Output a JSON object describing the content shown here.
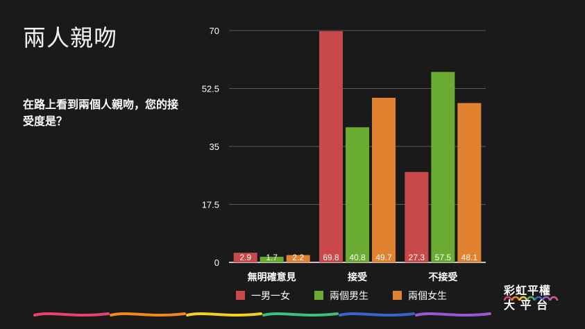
{
  "slide": {
    "title": "兩人親吻",
    "question": "在路上看到兩個人親吻，您的接受度是？"
  },
  "brand": {
    "name": "彩虹平權\n大 平 台",
    "logo_icon": "rainbow-arcs-icon",
    "rainbow_colors": [
      "#e8426f",
      "#f08a1c",
      "#f5d11a",
      "#3fbf7a",
      "#3b63c9",
      "#9b59d0",
      "#e84fa8"
    ]
  },
  "chart_data": {
    "type": "bar",
    "title": "",
    "xlabel": "",
    "ylabel": "",
    "categories": [
      "無明確意見",
      "接受",
      "不接受"
    ],
    "series": [
      {
        "name": "一男一女",
        "color": "#c9484a",
        "values": [
          2.9,
          69.8,
          27.3
        ]
      },
      {
        "name": "兩個男生",
        "color": "#6aab32",
        "values": [
          1.7,
          40.8,
          57.5
        ]
      },
      {
        "name": "兩個女生",
        "color": "#e0822f",
        "values": [
          2.2,
          49.7,
          48.1
        ]
      }
    ],
    "ylim": [
      0,
      70
    ],
    "yticks": [
      "0",
      "17.5",
      "35",
      "52.5",
      "70"
    ],
    "grid": true,
    "legend_position": "bottom",
    "data_labels": true,
    "axis_color": "#ffffff",
    "grid_color": "#5a5a5a"
  }
}
